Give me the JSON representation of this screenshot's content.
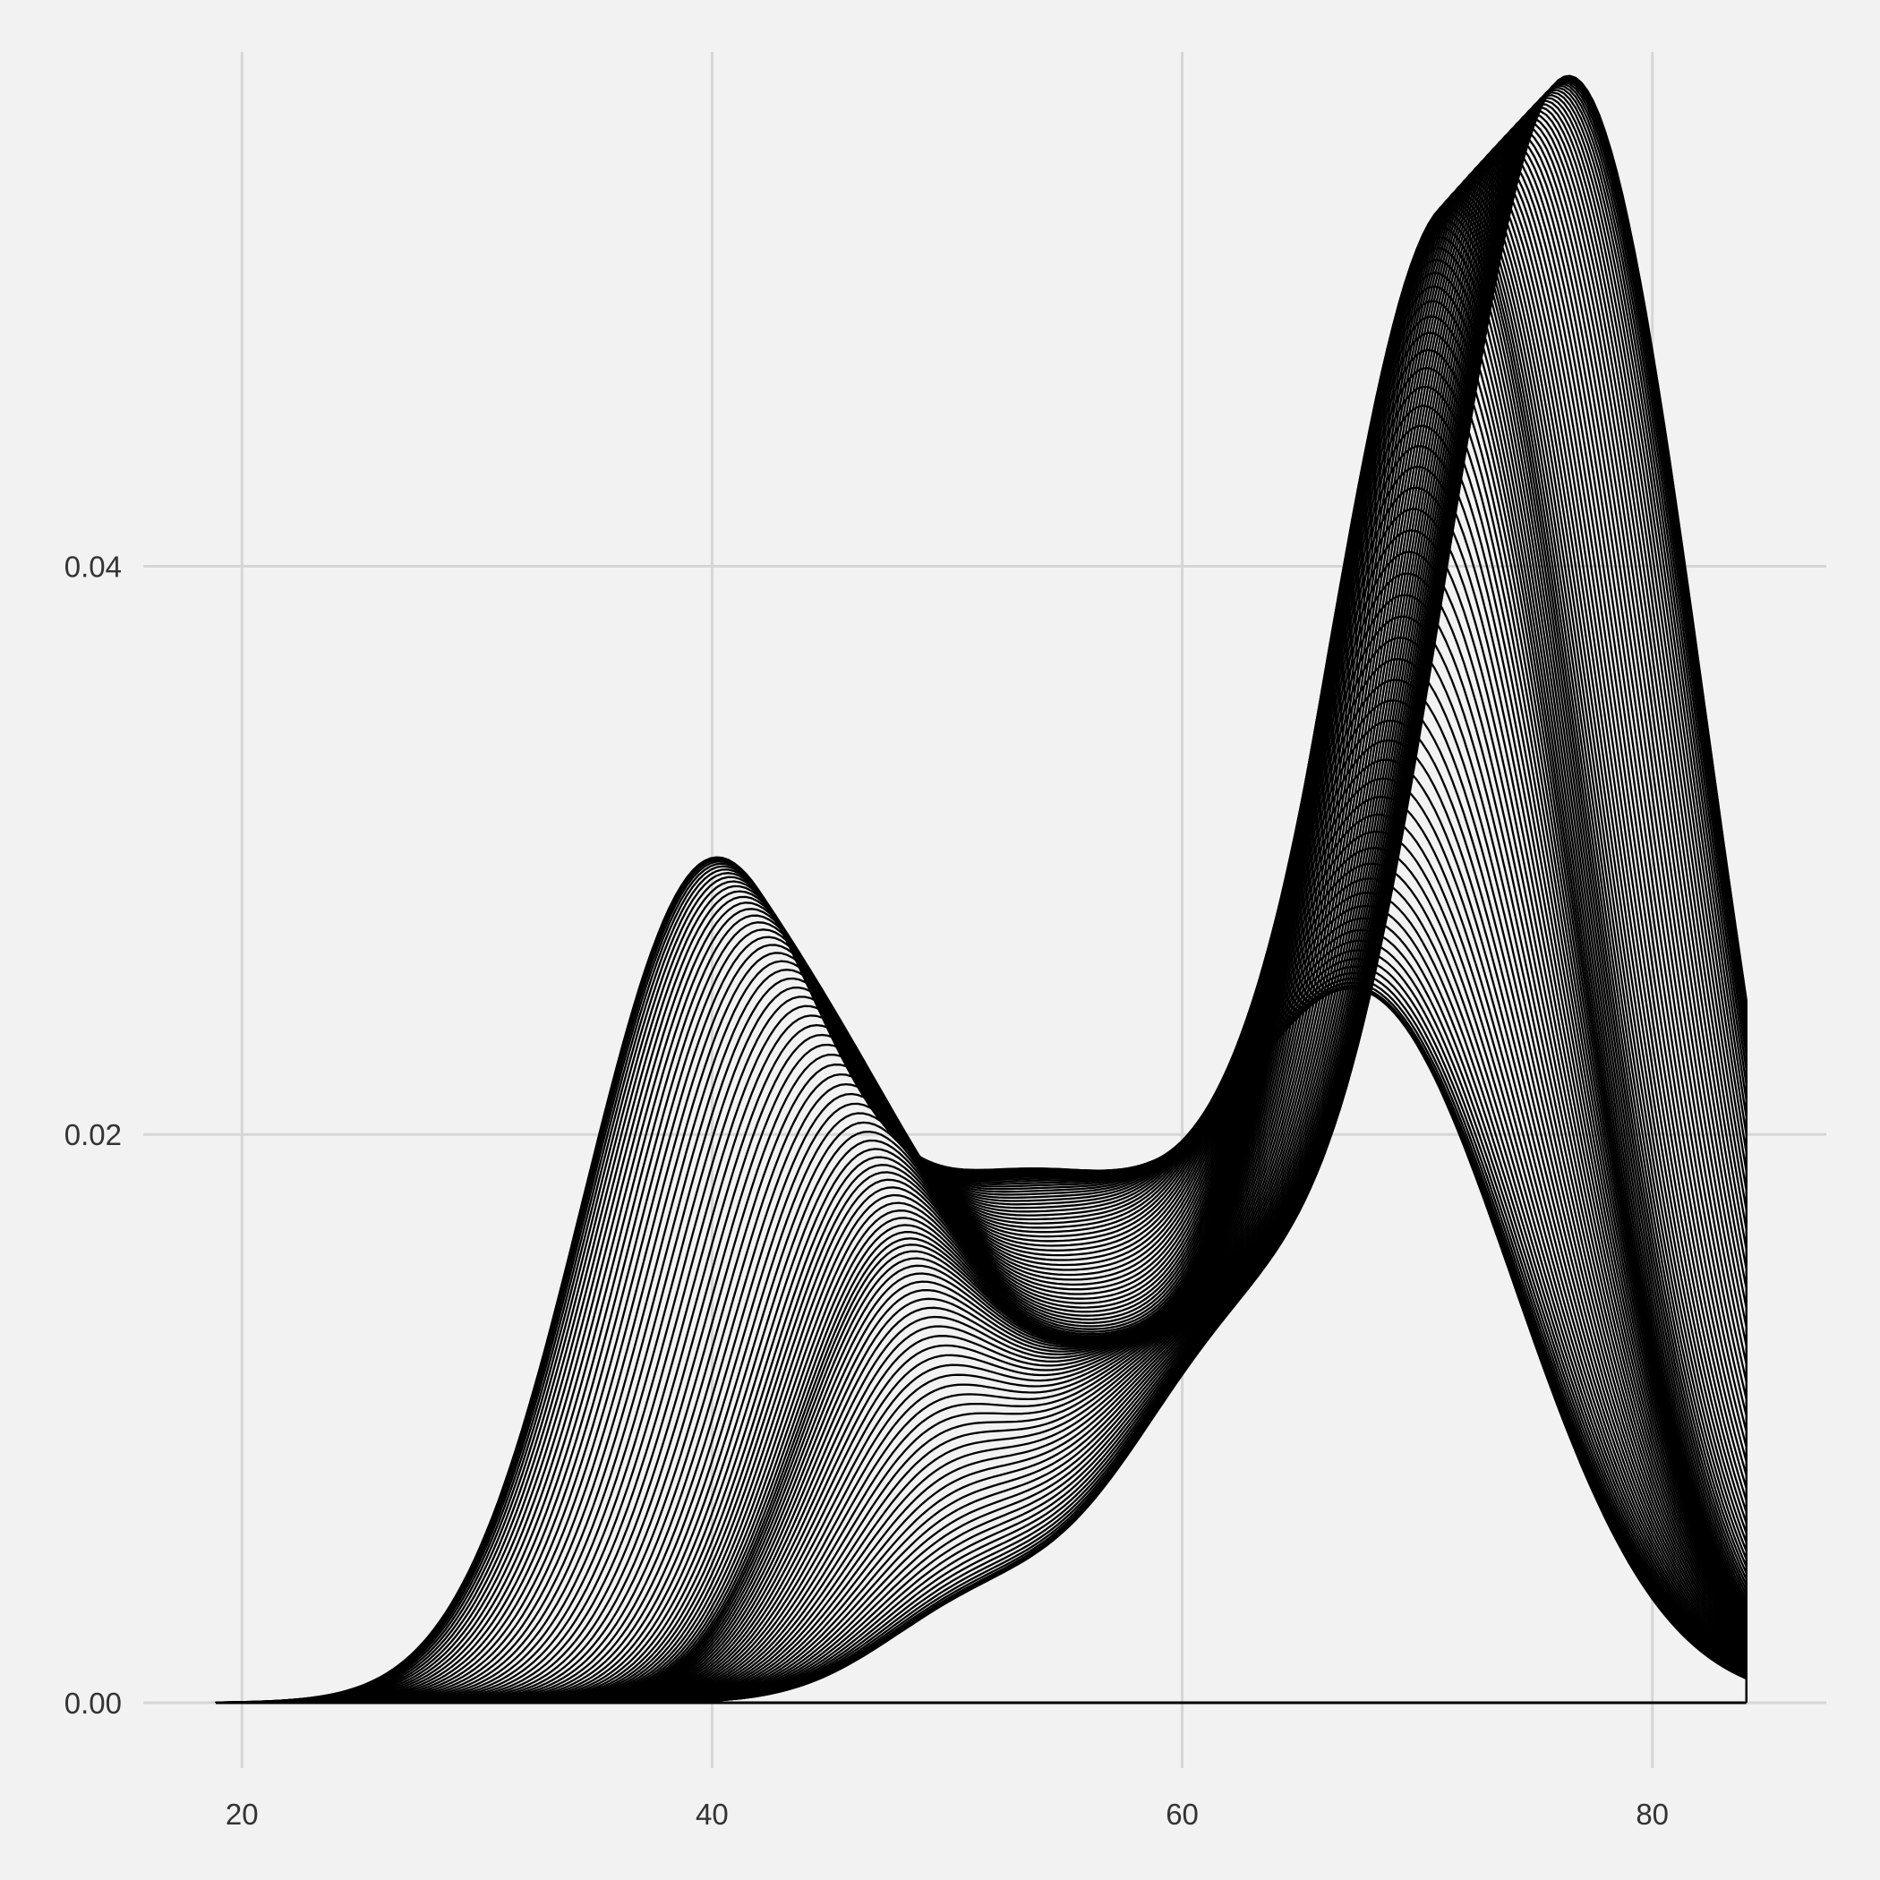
{
  "chart_data": {
    "type": "line",
    "title": "",
    "xlabel": "",
    "ylabel": "",
    "xlim": [
      15.8,
      87.4
    ],
    "ylim": [
      -0.0023,
      0.0581
    ],
    "x_ticks": [
      {
        "value": 20,
        "label": "20"
      },
      {
        "value": 40,
        "label": "40"
      },
      {
        "value": 60,
        "label": "60"
      },
      {
        "value": 80,
        "label": "80"
      }
    ],
    "y_ticks": [
      {
        "value": 0.0,
        "label": "0.00"
      },
      {
        "value": 0.02,
        "label": "0.02"
      },
      {
        "value": 0.04,
        "label": "0.04"
      }
    ],
    "grid": true,
    "legend": "none",
    "line_color": "#000000",
    "grid_color": "#d6d6d6",
    "background_color": "#f2f2f2",
    "curve_count": 100,
    "x_range": [
      18.9,
      84.0
    ],
    "description": "Family of overlapping density curves morphing from a bimodal shape to a single peak",
    "key_curves": [
      {
        "name": "first",
        "x": [
          19,
          25,
          30,
          33,
          36,
          38,
          40,
          42,
          45,
          48,
          51,
          54,
          57,
          60,
          63,
          66,
          68,
          70,
          72,
          74,
          76,
          78,
          80,
          82,
          84
        ],
        "y": [
          0.0003,
          0.0008,
          0.003,
          0.0085,
          0.018,
          0.0245,
          0.0282,
          0.0283,
          0.0262,
          0.0255,
          0.0248,
          0.024,
          0.0235,
          0.0235,
          0.023,
          0.0205,
          0.0175,
          0.0135,
          0.0095,
          0.006,
          0.0032,
          0.0015,
          0.0006,
          0.0002,
          0.0001
        ]
      },
      {
        "name": "middle",
        "x": [
          19,
          30,
          38,
          42,
          46,
          50,
          54,
          58,
          62,
          65,
          68,
          70,
          71.5,
          73,
          75,
          77,
          79,
          81,
          84
        ],
        "y": [
          0.0001,
          0.0003,
          0.0015,
          0.0045,
          0.0105,
          0.0175,
          0.0165,
          0.0195,
          0.026,
          0.034,
          0.043,
          0.0485,
          0.0495,
          0.047,
          0.036,
          0.022,
          0.0095,
          0.0025,
          0.0003
        ]
      },
      {
        "name": "last",
        "x": [
          19,
          40,
          46,
          50,
          54,
          58,
          62,
          66,
          70,
          72,
          74,
          75.5,
          77,
          79,
          81,
          82.5,
          84
        ],
        "y": [
          0.0,
          0.0001,
          0.0012,
          0.0045,
          0.0085,
          0.012,
          0.0165,
          0.023,
          0.035,
          0.044,
          0.052,
          0.0545,
          0.0525,
          0.0445,
          0.0365,
          0.029,
          0.021
        ]
      }
    ]
  }
}
